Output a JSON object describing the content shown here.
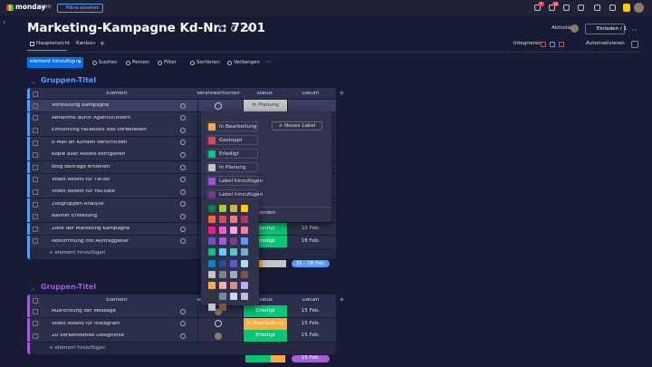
{
  "top_bar": {
    "logo": "monday",
    "logo_suffix": ".com",
    "plans_button": "Pläne ansehen",
    "badges": [
      "7",
      "12"
    ]
  },
  "board": {
    "title": "Marketing-Kampagne Kd-Nr.: 7201",
    "tabs": [
      "Hauptansicht",
      "Kanban"
    ],
    "add_tab": "+",
    "activity": "Aktivität",
    "invite": "Einladen / 1",
    "integrate": "Integrieren",
    "automate": "Automatisieren"
  },
  "toolbar": {
    "add_button": "element hinzufügen",
    "search": "Suchen",
    "person": "Person",
    "filter": "Filter",
    "sort": "Sortieren",
    "hide": "Verbergen"
  },
  "groups": [
    {
      "title": "Gruppen-Titel",
      "color": "#579bfc",
      "columns": [
        "Element",
        "Verantwortliche/r",
        "Status",
        "Datum"
      ],
      "items": [
        {
          "name": "Vorstellung Kampagne",
          "status": "In Planung"
        },
        {
          "name": "Abnahme durch Agentur/intern"
        },
        {
          "name": "Einführung Facebook Ads vorbereiten"
        },
        {
          "name": "E-Mail an Kunden verschicken"
        },
        {
          "name": "Kopie aller Assets korrigieren"
        },
        {
          "name": "Blog Beiträge erstellen"
        },
        {
          "name": "Video Assets für TikTok"
        },
        {
          "name": "Video Assets für YouTube"
        },
        {
          "name": "Zielgruppen Analyse"
        },
        {
          "name": "Banner Erstellung"
        },
        {
          "name": "Ziele der Marketing Kampagne",
          "status": "Erledigt",
          "date": "15 Feb."
        },
        {
          "name": "Abstimmung mit Auftraggeber",
          "status": "Erledigt",
          "date": "18 Feb."
        }
      ],
      "add_item": "+ element hinzufügen",
      "date_summary": "15 - 18 Feb."
    },
    {
      "title": "Gruppen-Titel",
      "color": "#a25ddc",
      "columns": [
        "Element",
        "Verantwortliche/r",
        "Status",
        "Datum"
      ],
      "items": [
        {
          "name": "Ausrichtung der Message",
          "status": "Erledigt",
          "date": "15 Feb."
        },
        {
          "name": "Video Assets für Instagram",
          "status": "In Bearbeitung",
          "date": "15 Feb."
        },
        {
          "name": "Zu verwendende Designstile",
          "status": "Erledigt",
          "date": "15 Feb."
        }
      ],
      "add_item": "+ element hinzufügen",
      "date_summary": "15 Feb."
    }
  ],
  "status_menu": {
    "new_label": "+ Neues Label",
    "apply": "wenden",
    "labels": [
      {
        "text": "In Bearbeitung",
        "color": "#fdab3d"
      },
      {
        "text": "Gestoppt",
        "color": "#e2445c"
      },
      {
        "text": "Erledigt",
        "color": "#00c875"
      },
      {
        "text": "In Planung",
        "color": "#c4c4c4"
      },
      {
        "text": "Label hinzufügen",
        "color": "#9d50dd"
      },
      {
        "text": "Label hinzufügen",
        "color": "#7e3b8a"
      }
    ]
  }
}
